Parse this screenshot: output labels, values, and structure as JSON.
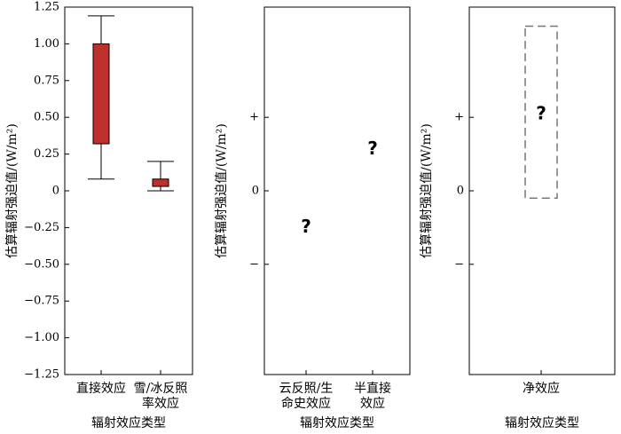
{
  "chart_data": [
    {
      "type": "box",
      "ylabel": "估算辐射强迫值/(W/m²)",
      "xlabel": "辐射效应类型",
      "categories": [
        "直接效应",
        "雪/冰反照\n率效应"
      ],
      "whisker_low": [
        0.08,
        0
      ],
      "q1": [
        0.32,
        0.03
      ],
      "q3": [
        1.0,
        0.08
      ],
      "whisker_high": [
        1.19,
        0.2
      ],
      "color": "#c0302b",
      "ylim": [
        -1.25,
        1.25
      ],
      "yticks": [
        1.25,
        {
          "value": 1,
          "label": "1.00"
        },
        0.75,
        {
          "value": 0.5,
          "label": "0.50"
        },
        0.25,
        0,
        {
          "value": -0.25,
          "label": "−0.25"
        },
        {
          "value": -0.5,
          "label": "−0.50"
        },
        {
          "value": -0.75,
          "label": "−0.75"
        },
        {
          "value": -1,
          "label": "−1.00"
        },
        {
          "value": -1.25,
          "label": "−1.25"
        }
      ]
    },
    {
      "type": "marker",
      "ylabel": "估算辐射强迫值/(W/m²)",
      "xlabel": "辐射效应类型",
      "categories": [
        "云反照/生\n命史效应",
        "半直接\n效应"
      ],
      "values": [
        -0.25,
        0.28
      ],
      "markers": [
        "?",
        "?"
      ],
      "ylim": [
        -1.25,
        1.25
      ],
      "yticks": [
        {
          "value": 0.5,
          "label": "+"
        },
        0,
        {
          "value": -0.5,
          "label": "−"
        }
      ]
    },
    {
      "type": "range",
      "ylabel": "估算辐射强迫值/(W/m²)",
      "xlabel": "辐射效应类型",
      "categories": [
        "净效应"
      ],
      "low": [
        -0.05
      ],
      "high": [
        1.12
      ],
      "values": [
        0.52
      ],
      "markers": [
        "?"
      ],
      "color": "#777777",
      "ylim": [
        -1.25,
        1.25
      ],
      "yticks": [
        {
          "value": 0.5,
          "label": "+"
        },
        0,
        {
          "value": -0.5,
          "label": "−"
        }
      ]
    }
  ]
}
